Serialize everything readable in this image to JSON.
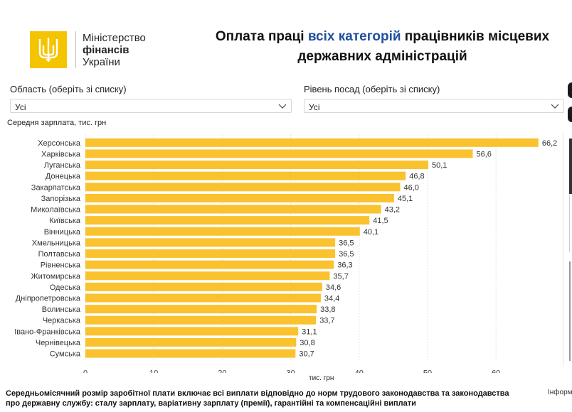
{
  "header": {
    "ministry_line1": "Міністерство",
    "ministry_line2": "фінансів",
    "ministry_line3": "України",
    "title_part1": "Оплата праці ",
    "title_part2": "всіх категорій",
    "title_part3": " працівників місцевих",
    "title_line2": "державних адміністрацій"
  },
  "filters": {
    "region_label": "Область (оберіть зі списку)",
    "region_value": "Усі",
    "level_label": "Рівень посад (оберіть зі списку)",
    "level_value": "Усі"
  },
  "colors": {
    "bar": "#f9c22e",
    "accent": "#f5c400",
    "title_highlight": "#1f4f9e"
  },
  "icons": {
    "dropdown": "chevron-down-icon",
    "logo": "trident-icon"
  },
  "chart_data": {
    "type": "bar",
    "orientation": "horizontal",
    "title": "Середня зарплата, тис. грн",
    "xlabel": "тис. грн",
    "categories": [
      "Херсонська",
      "Харківська",
      "Луганська",
      "Донецька",
      "Закарпатська",
      "Запорізька",
      "Миколаївська",
      "Київська",
      "Вінницька",
      "Хмельницька",
      "Полтавська",
      "Рівненська",
      "Житомирська",
      "Одеська",
      "Дніпропетровська",
      "Волинська",
      "Черкаська",
      "Івано-Франківська",
      "Чернівецька",
      "Сумська"
    ],
    "values": [
      66.2,
      56.6,
      50.1,
      46.8,
      46.0,
      45.1,
      43.2,
      41.5,
      40.1,
      36.5,
      36.5,
      36.3,
      35.7,
      34.6,
      34.4,
      33.8,
      33.7,
      31.1,
      30.8,
      30.7
    ],
    "value_labels": [
      "66,2",
      "56,6",
      "50,1",
      "46,8",
      "46,0",
      "45,1",
      "43,2",
      "41,5",
      "40,1",
      "36,5",
      "36,5",
      "36,3",
      "35,7",
      "34,6",
      "34,4",
      "33,8",
      "33,7",
      "31,1",
      "30,8",
      "30,7"
    ],
    "xticks": [
      0,
      10,
      20,
      30,
      40,
      50,
      60
    ],
    "xlim": [
      0,
      70
    ],
    "grid": true
  },
  "footer": {
    "note": "Середньомісячний розмір заробітної плати включає всі виплати відповідно до норм трудового законодавства та законодавства про державну службу: сталу зарплату, варіативну зарплату (премії), гарантійні та компенсаційні виплати",
    "info": "Інформ"
  }
}
